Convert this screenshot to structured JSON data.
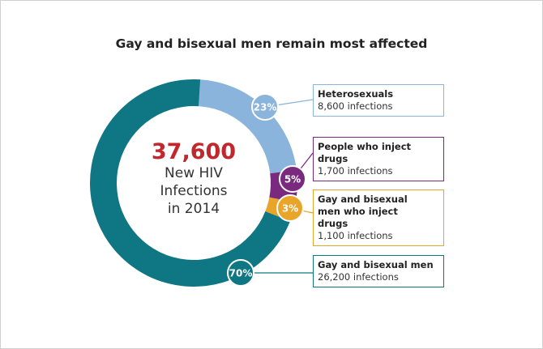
{
  "chart_data": {
    "type": "pie",
    "title": "Gay and bisexual men remain most affected",
    "center": {
      "value": "37,600",
      "line1": "New HIV",
      "line2": "Infections",
      "line3": "in 2014"
    },
    "slices": [
      {
        "name": "Heterosexuals",
        "percent": 23,
        "label": "23%",
        "detail": "8,600 infections",
        "color": "#8ab4db"
      },
      {
        "name": "People who inject drugs",
        "percent": 5,
        "label": "5%",
        "detail": "1,700 infections",
        "color": "#7a2a7e"
      },
      {
        "name": "Gay and bisexual men who inject drugs",
        "percent": 3,
        "label": "3%",
        "detail": "1,100 infections",
        "color": "#e9a42a"
      },
      {
        "name": "Gay and bisexual men",
        "percent": 70,
        "label": "70%",
        "detail": "26,200 infections",
        "color": "#0f7683"
      }
    ]
  }
}
